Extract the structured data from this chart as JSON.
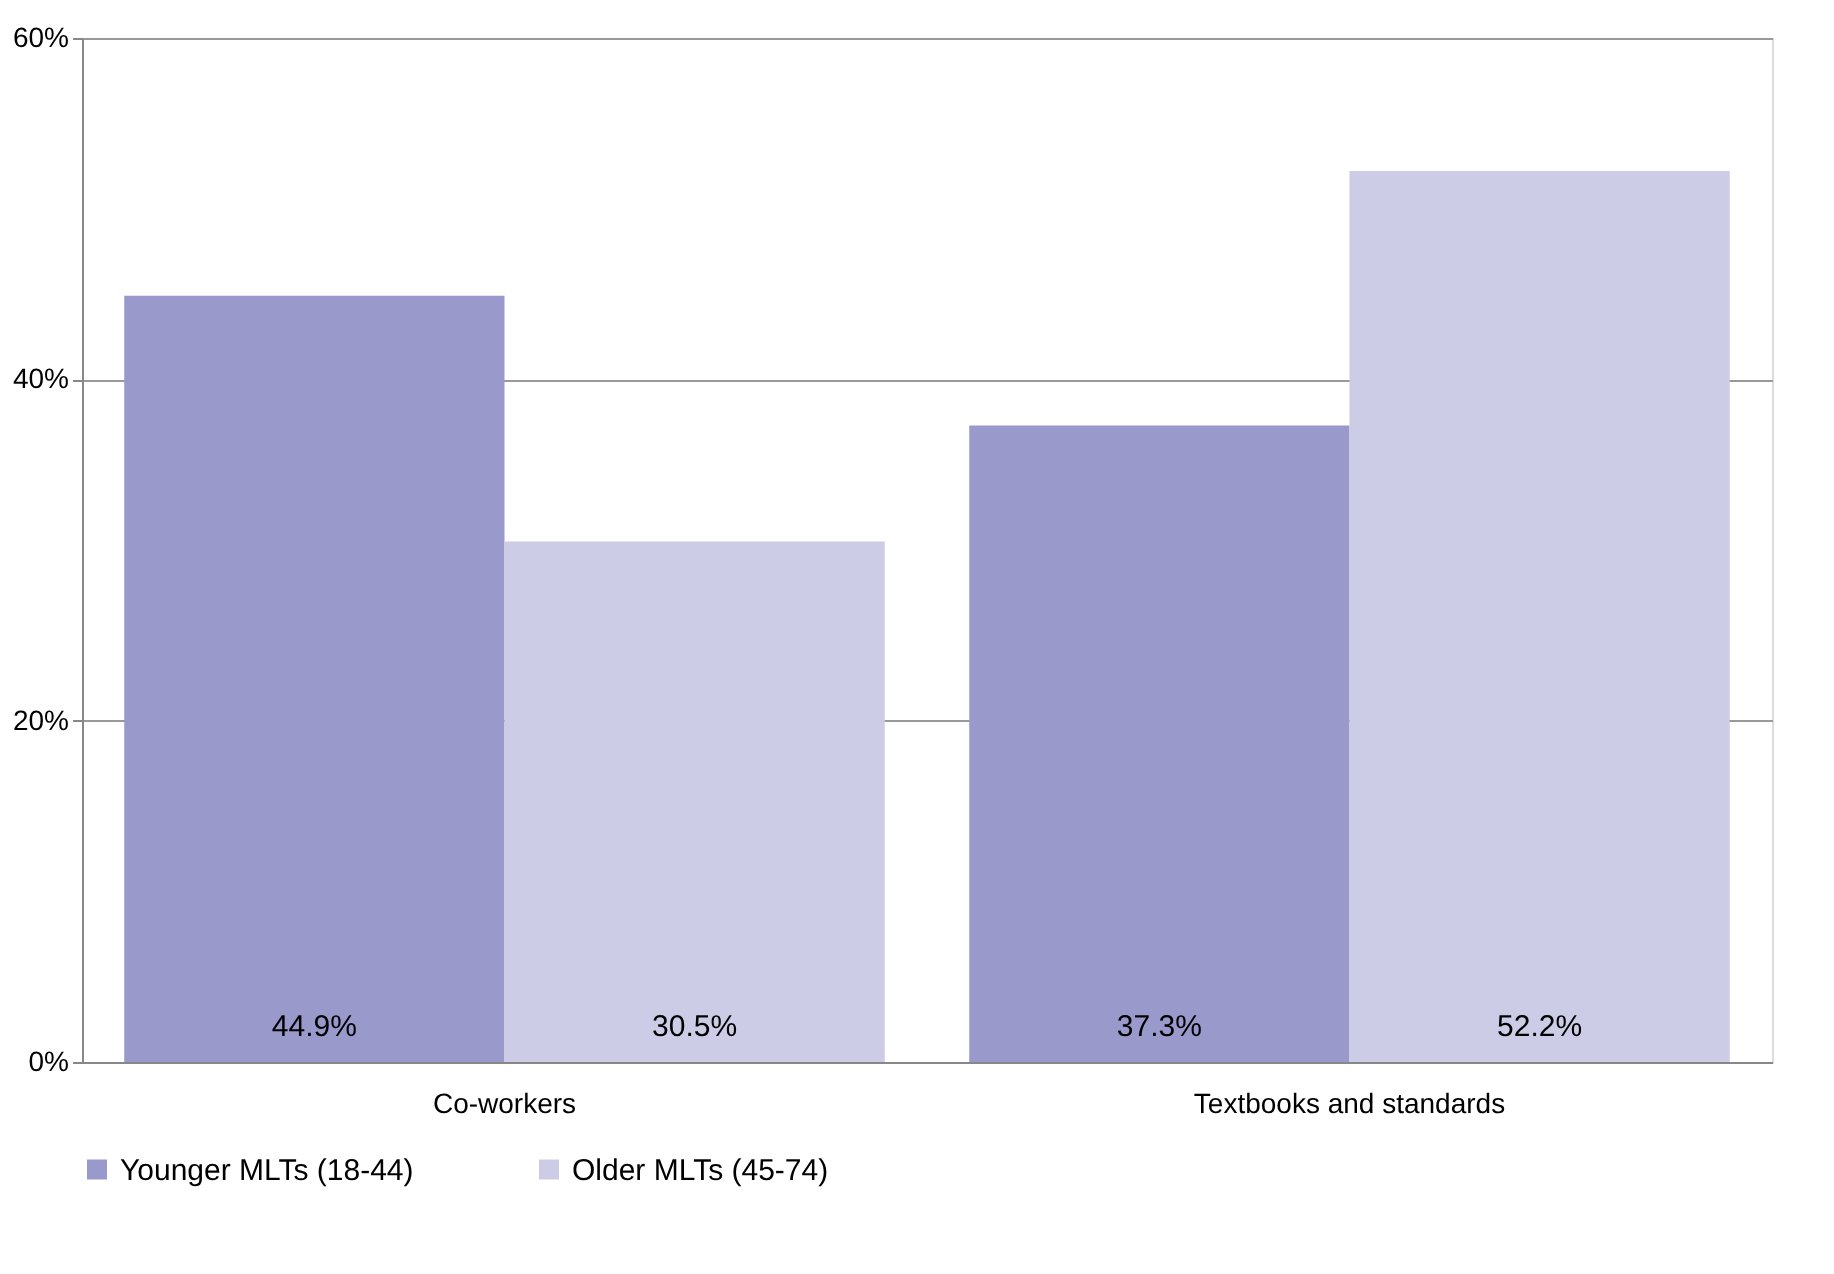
{
  "chart_data": {
    "type": "bar",
    "categories": [
      "Co-workers",
      "Textbooks and standards"
    ],
    "series": [
      {
        "name": "Younger MLTs (18-44)",
        "color": "#9999cc",
        "values": [
          44.9,
          37.3
        ],
        "value_labels": [
          "44.9%",
          "37.3%"
        ]
      },
      {
        "name": "Older MLTs (45-74)",
        "color": "#ccccE6",
        "values": [
          30.5,
          52.2
        ],
        "value_labels": [
          "30.5%",
          "52.2%"
        ]
      }
    ],
    "ylim": [
      0,
      60
    ],
    "yticks": [
      {
        "value": 0,
        "label": "0%"
      },
      {
        "value": 20,
        "label": "20%"
      },
      {
        "value": 40,
        "label": "40%"
      },
      {
        "value": 60,
        "label": "60%"
      }
    ],
    "grid": "y",
    "legend": "bottom"
  }
}
